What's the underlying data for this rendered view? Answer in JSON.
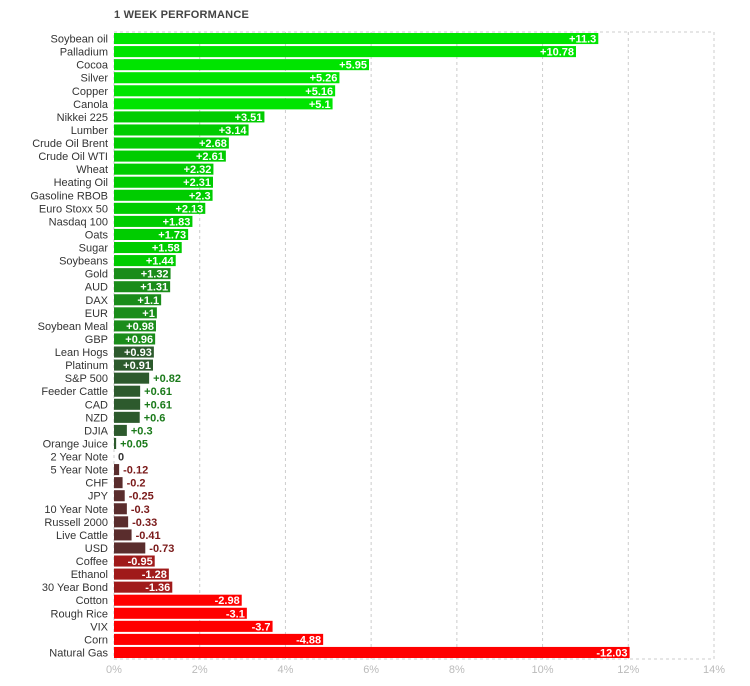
{
  "chart_data": {
    "type": "bar",
    "orientation": "horizontal",
    "title": "1 WEEK PERFORMANCE",
    "xlabel": "",
    "ylabel": "",
    "xlim": [
      0,
      14
    ],
    "x_ticks": [
      "0%",
      "2%",
      "4%",
      "6%",
      "8%",
      "10%",
      "12%",
      "14%"
    ],
    "grid": true,
    "categories": [
      "Soybean oil",
      "Palladium",
      "Cocoa",
      "Silver",
      "Copper",
      "Canola",
      "Nikkei 225",
      "Lumber",
      "Crude Oil Brent",
      "Crude Oil WTI",
      "Wheat",
      "Heating Oil",
      "Gasoline RBOB",
      "Euro Stoxx 50",
      "Nasdaq 100",
      "Oats",
      "Sugar",
      "Soybeans",
      "Gold",
      "AUD",
      "DAX",
      "EUR",
      "Soybean Meal",
      "GBP",
      "Lean Hogs",
      "Platinum",
      "S&P 500",
      "Feeder Cattle",
      "CAD",
      "NZD",
      "DJIA",
      "Orange Juice",
      "2 Year Note",
      "5 Year Note",
      "CHF",
      "JPY",
      "10 Year Note",
      "Russell 2000",
      "Live Cattle",
      "USD",
      "Coffee",
      "Ethanol",
      "30 Year Bond",
      "Cotton",
      "Rough Rice",
      "VIX",
      "Corn",
      "Natural Gas"
    ],
    "values": [
      11.3,
      10.78,
      5.95,
      5.26,
      5.16,
      5.1,
      3.51,
      3.14,
      2.68,
      2.61,
      2.32,
      2.31,
      2.3,
      2.13,
      1.83,
      1.73,
      1.58,
      1.44,
      1.32,
      1.31,
      1.1,
      1,
      0.98,
      0.96,
      0.93,
      0.91,
      0.82,
      0.61,
      0.61,
      0.6,
      0.3,
      0.05,
      0,
      -0.12,
      -0.2,
      -0.25,
      -0.3,
      -0.33,
      -0.41,
      -0.73,
      -0.95,
      -1.28,
      -1.36,
      -2.98,
      -3.1,
      -3.7,
      -4.88,
      -12.03
    ],
    "value_labels": [
      "+11.3",
      "+10.78",
      "+5.95",
      "+5.26",
      "+5.16",
      "+5.1",
      "+3.51",
      "+3.14",
      "+2.68",
      "+2.61",
      "+2.32",
      "+2.31",
      "+2.3",
      "+2.13",
      "+1.83",
      "+1.73",
      "+1.58",
      "+1.44",
      "+1.32",
      "+1.31",
      "+1.1",
      "+1",
      "+0.98",
      "+0.96",
      "+0.93",
      "+0.91",
      "+0.82",
      "+0.61",
      "+0.61",
      "+0.6",
      "+0.3",
      "+0.05",
      "0",
      "-0.12",
      "-0.2",
      "-0.25",
      "-0.3",
      "-0.33",
      "-0.41",
      "-0.73",
      "-0.95",
      "-1.28",
      "-1.36",
      "-2.98",
      "-3.1",
      "-3.7",
      "-4.88",
      "-12.03"
    ],
    "colors": {
      "strong_positive": "#00e400",
      "positive": "#00cc00",
      "medium_positive": "#1a8c1a",
      "weak_positive": "#2d5a2d",
      "neutral": "#333333",
      "weak_negative": "#5a2d2d",
      "medium_negative": "#a01a1a",
      "strong_negative": "#ff0000",
      "positive_text": "#1a7a1a",
      "negative_text": "#7a1a1a",
      "grid": "#cccccc",
      "axis_text": "#bbbbbb"
    }
  }
}
